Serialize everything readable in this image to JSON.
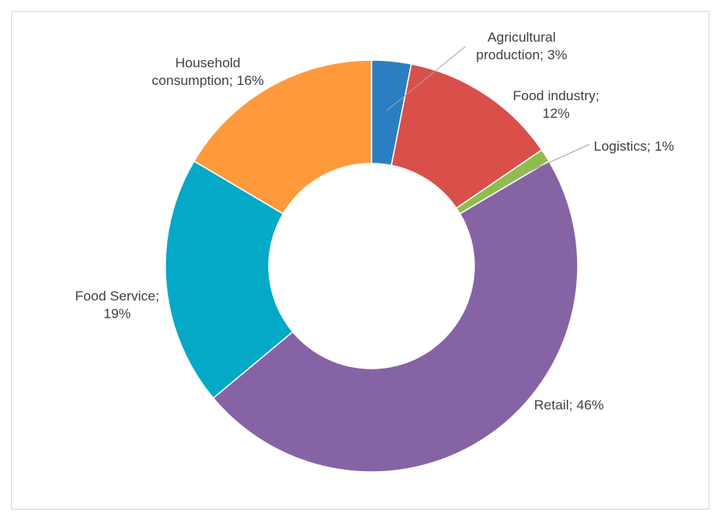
{
  "chart_data": {
    "type": "pie",
    "variant": "donut",
    "title": "",
    "legend": "none",
    "slices": [
      {
        "name": "Agricultural production",
        "value": 3,
        "color": "#2a7fc1",
        "label_lines": [
          "Agricultural",
          "production;  3%"
        ]
      },
      {
        "name": "Food industry",
        "value": 12,
        "color": "#d9504b",
        "label_lines": [
          "Food industry;",
          "12%"
        ]
      },
      {
        "name": "Logistics",
        "value": 1,
        "color": "#8fbd4c",
        "label_lines": [
          "Logistics; 1%"
        ]
      },
      {
        "name": "Retail",
        "value": 46,
        "color": "#8663a4",
        "label_lines": [
          "Retail; 46%"
        ]
      },
      {
        "name": "Food Service",
        "value": 19,
        "color": "#03a9c6",
        "label_lines": [
          "Food Service;",
          "19%"
        ]
      },
      {
        "name": "Household consumption",
        "value": 16,
        "color": "#ff9a3c",
        "label_lines": [
          "Household",
          "consumption;  16%"
        ]
      }
    ]
  }
}
